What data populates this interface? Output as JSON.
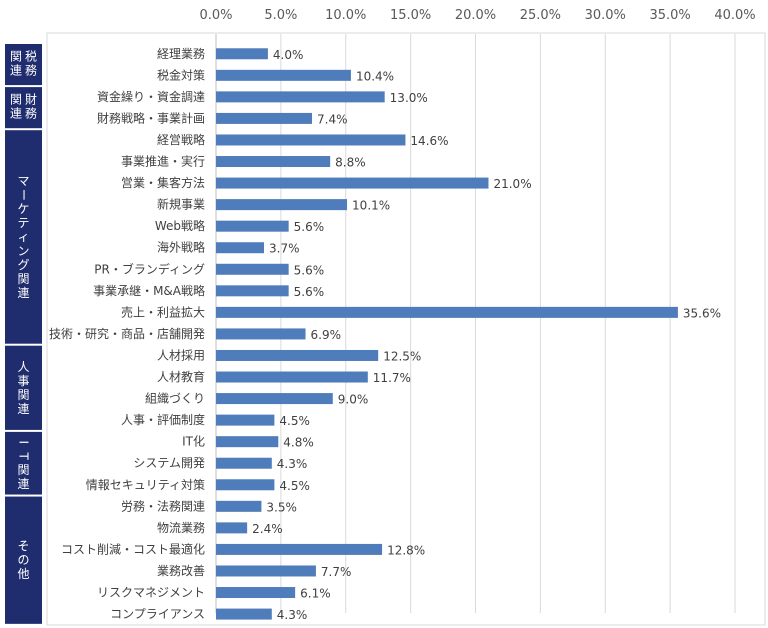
{
  "chart_data": {
    "type": "bar",
    "orientation": "horizontal",
    "xlim": [
      0,
      40
    ],
    "x_ticks": [
      "0.0%",
      "5.0%",
      "10.0%",
      "15.0%",
      "20.0%",
      "25.0%",
      "30.0%",
      "35.0%",
      "40.0%"
    ],
    "axis_position": "top",
    "grid": true,
    "bar_color": "#4f7cba",
    "group_color": "#1f2d6e",
    "categories": [
      "経理業務",
      "税金対策",
      "資金繰り・資金調達",
      "財務戦略・事業計画",
      "経営戦略",
      "事業推進・実行",
      "営業・集客方法",
      "新規事業",
      "Web戦略",
      "海外戦略",
      "PR・ブランディング",
      "事業承継・M&A戦略",
      "売上・利益拡大",
      "技術・研究・商品・店舗開発",
      "人材採用",
      "人材教育",
      "組織づくり",
      "人事・評価制度",
      "IT化",
      "システム開発",
      "情報セキュリティ対策",
      "労務・法務関連",
      "物流業務",
      "コスト削減・コスト最適化",
      "業務改善",
      "リスクマネジメント",
      "コンプライアンス"
    ],
    "values": [
      4.0,
      10.4,
      13.0,
      7.4,
      14.6,
      8.8,
      21.0,
      10.1,
      5.6,
      3.7,
      5.6,
      5.6,
      35.6,
      6.9,
      12.5,
      11.7,
      9.0,
      4.5,
      4.8,
      4.3,
      4.5,
      3.5,
      2.4,
      12.8,
      7.7,
      6.1,
      4.3
    ],
    "value_labels": [
      "4.0%",
      "10.4%",
      "13.0%",
      "7.4%",
      "14.6%",
      "8.8%",
      "21.0%",
      "10.1%",
      "5.6%",
      "3.7%",
      "5.6%",
      "5.6%",
      "35.6%",
      "6.9%",
      "12.5%",
      "11.7%",
      "9.0%",
      "4.5%",
      "4.8%",
      "4.3%",
      "4.5%",
      "3.5%",
      "2.4%",
      "12.8%",
      "7.7%",
      "6.1%",
      "4.3%"
    ],
    "groups": [
      {
        "label": "税務関連",
        "start": 0,
        "end": 1,
        "lines": [
          "関",
          "連"
        ],
        "lines2": [
          "税",
          "務"
        ],
        "style": "two-col"
      },
      {
        "label": "財務関連",
        "start": 2,
        "end": 3,
        "lines": [
          "関",
          "連"
        ],
        "lines2": [
          "財",
          "務"
        ],
        "style": "two-col"
      },
      {
        "label": "マーケティング関連",
        "start": 4,
        "end": 13,
        "style": "vertical"
      },
      {
        "label": "人事関連",
        "start": 14,
        "end": 17,
        "style": "vertical"
      },
      {
        "label": "IT関連",
        "start": 18,
        "end": 20,
        "style": "vertical"
      },
      {
        "label": "その他",
        "start": 21,
        "end": 26,
        "style": "vertical"
      }
    ]
  }
}
